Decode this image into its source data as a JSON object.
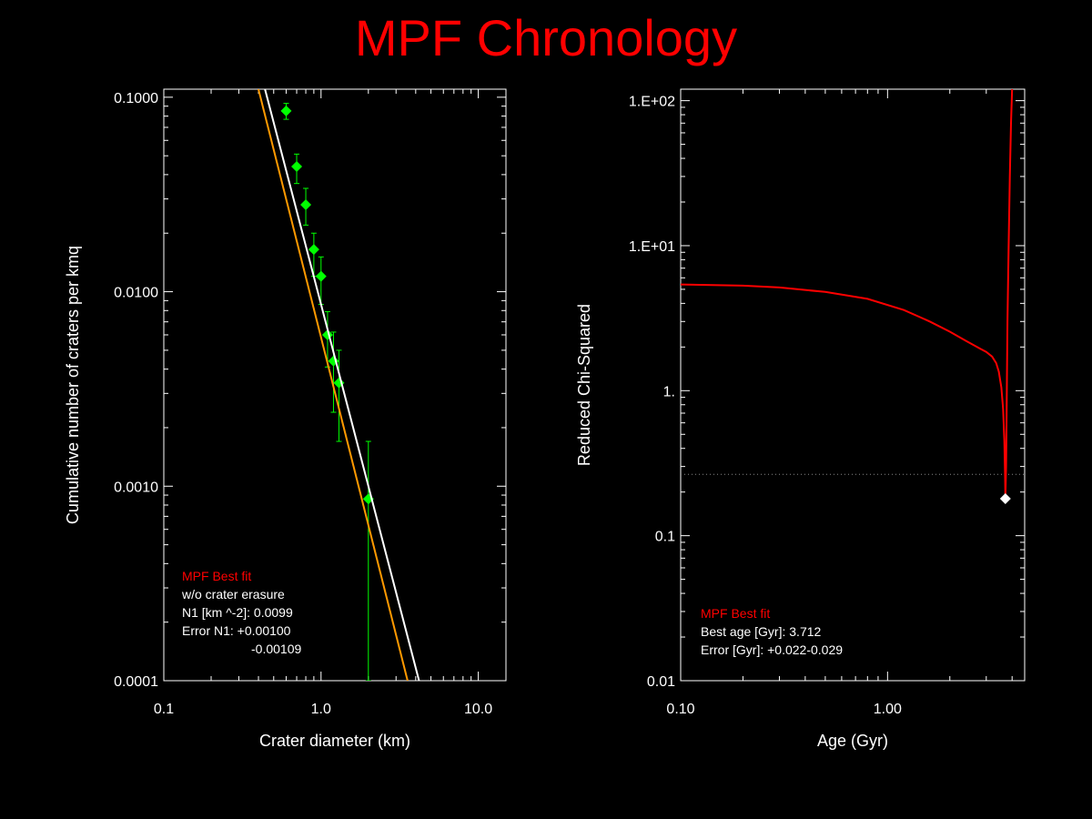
{
  "title": "MPF Chronology",
  "colors": {
    "title": "#ff0000",
    "background": "#000000",
    "axes": "#ffffff",
    "points": "#00ff00",
    "fit_white": "#ffffff",
    "fit_orange": "#ff9900",
    "chi_curve": "#ff0000",
    "best_marker": "#ffffff"
  },
  "chart_data": [
    {
      "type": "scatter",
      "xlabel": "Crater diameter (km)",
      "ylabel": "Cumulative number of craters per kmq",
      "xscale": "log",
      "yscale": "log",
      "xlim": [
        0.1,
        15
      ],
      "ylim": [
        0.0001,
        0.11
      ],
      "xtick_labels": [
        {
          "value": 0.1,
          "label": "0.1"
        },
        {
          "value": 1,
          "label": "1.0"
        },
        {
          "value": 10,
          "label": "10.0"
        }
      ],
      "ytick_labels": [
        {
          "value": 0.0001,
          "label": "0.0001"
        },
        {
          "value": 0.001,
          "label": "0.0010"
        },
        {
          "value": 0.01,
          "label": "0.0100"
        },
        {
          "value": 0.1,
          "label": "0.1000"
        }
      ],
      "series": [
        {
          "kind": "points",
          "x": [
            0.6,
            0.7,
            0.8,
            0.9,
            1.0,
            1.1,
            1.2,
            1.3,
            2.0
          ],
          "y": [
            0.085,
            0.044,
            0.028,
            0.0165,
            0.012,
            0.006,
            0.0044,
            0.0034,
            0.00086
          ],
          "err_low": [
            0.077,
            0.036,
            0.022,
            0.012,
            0.0086,
            0.0041,
            0.0024,
            0.0017,
            0.0001
          ],
          "err_high": [
            0.093,
            0.051,
            0.034,
            0.02,
            0.0151,
            0.0079,
            0.0062,
            0.005,
            0.0017
          ]
        },
        {
          "kind": "line",
          "color_key": "fit_white",
          "x": [
            0.44,
            4.2
          ],
          "y": [
            0.11,
            0.0001
          ]
        },
        {
          "kind": "line",
          "color_key": "fit_orange",
          "x": [
            0.4,
            3.55
          ],
          "y": [
            0.11,
            0.0001
          ]
        }
      ],
      "annotation": {
        "heading": "MPF Best fit",
        "lines": [
          "w/o crater erasure",
          "N1 [km ^-2]: 0.0099",
          "Error N1: +0.00100",
          "-0.00109"
        ]
      }
    },
    {
      "type": "line",
      "xlabel": "Age (Gyr)",
      "ylabel": "Reduced Chi-Squared",
      "xscale": "log",
      "yscale": "log",
      "xlim": [
        0.1,
        4.6
      ],
      "ylim": [
        0.01,
        120
      ],
      "xtick_labels": [
        {
          "value": 0.1,
          "label": "0.10"
        },
        {
          "value": 1,
          "label": "1.00"
        }
      ],
      "ytick_labels": [
        {
          "value": 0.01,
          "label": "0.01"
        },
        {
          "value": 0.1,
          "label": "0.1"
        },
        {
          "value": 1,
          "label": "1."
        },
        {
          "value": 10,
          "label": "1.E+01"
        },
        {
          "value": 100,
          "label": "1.E+02"
        }
      ],
      "series": [
        {
          "kind": "line",
          "color_key": "chi_curve",
          "x": [
            0.1,
            0.2,
            0.3,
            0.5,
            0.8,
            1.2,
            1.6,
            2.0,
            2.4,
            2.8,
            3.0,
            3.2,
            3.35,
            3.45,
            3.55,
            3.62,
            3.67,
            3.7,
            3.712,
            3.74,
            3.77,
            3.8,
            3.85,
            3.9,
            3.95,
            4.0
          ],
          "y": [
            5.4,
            5.3,
            5.15,
            4.8,
            4.3,
            3.6,
            3.0,
            2.55,
            2.2,
            1.95,
            1.85,
            1.72,
            1.55,
            1.35,
            1.05,
            0.75,
            0.45,
            0.25,
            0.18,
            0.3,
            1.0,
            3.0,
            10.0,
            30.0,
            70.0,
            120.0
          ]
        }
      ],
      "reference_line_y": 0.265,
      "best_point": {
        "x": 3.712,
        "y": 0.18
      },
      "annotation": {
        "heading": "MPF Best fit",
        "lines": [
          "Best age [Gyr]: 3.712",
          "Error [Gyr]: +0.022-0.029"
        ]
      }
    }
  ]
}
